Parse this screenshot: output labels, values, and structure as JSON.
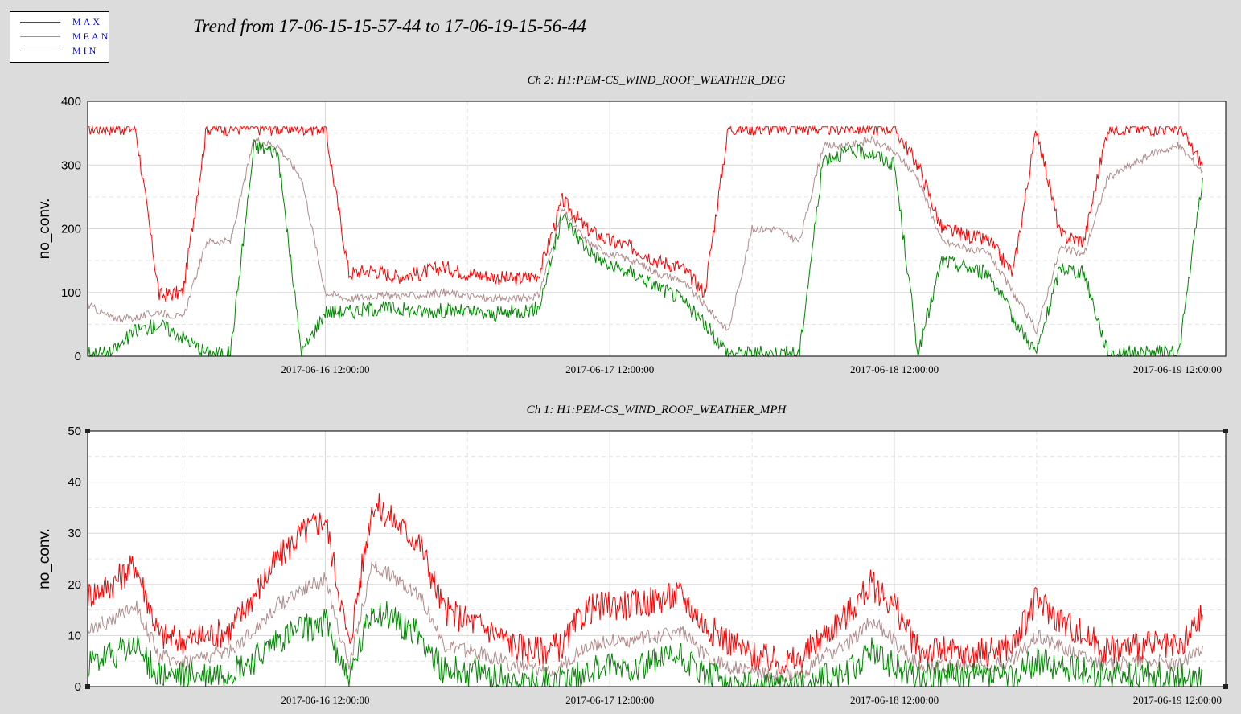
{
  "title": "Trend from 17-06-15-15-57-44 to 17-06-19-15-56-44",
  "legend": [
    {
      "name": "MAX",
      "color": "#ff0000"
    },
    {
      "name": "MEAN",
      "color": "#b08c8c"
    },
    {
      "name": "MIN",
      "color": "#008800"
    }
  ],
  "chart_data": [
    {
      "type": "line",
      "title": "Ch 2: H1:PEM-CS_WIND_ROOF_WEATHER_DEG",
      "xlabel": "",
      "ylabel": "no_conv.",
      "ylim": [
        0,
        400
      ],
      "yticks": [
        0,
        100,
        200,
        300,
        400
      ],
      "xrange": [
        "2017-06-15 15:57:44",
        "2017-06-19 15:56:44"
      ],
      "xticks": [
        "2017-06-16 12:00:00",
        "2017-06-17 12:00:00",
        "2017-06-18 12:00:00",
        "2017-06-19 12:00:00"
      ],
      "grid": true,
      "series_names": [
        "MAX",
        "MEAN",
        "MIN"
      ],
      "x": [
        "2017-06-15 16:00",
        "2017-06-15 18:00",
        "2017-06-15 20:00",
        "2017-06-15 22:00",
        "2017-06-16 00:00",
        "2017-06-16 02:00",
        "2017-06-16 04:00",
        "2017-06-16 06:00",
        "2017-06-16 08:00",
        "2017-06-16 10:00",
        "2017-06-16 12:00",
        "2017-06-16 14:00",
        "2017-06-16 16:00",
        "2017-06-16 18:00",
        "2017-06-16 20:00",
        "2017-06-16 22:00",
        "2017-06-17 00:00",
        "2017-06-17 02:00",
        "2017-06-17 04:00",
        "2017-06-17 06:00",
        "2017-06-17 08:00",
        "2017-06-17 10:00",
        "2017-06-17 12:00",
        "2017-06-17 14:00",
        "2017-06-17 16:00",
        "2017-06-17 18:00",
        "2017-06-17 20:00",
        "2017-06-17 22:00",
        "2017-06-18 00:00",
        "2017-06-18 02:00",
        "2017-06-18 04:00",
        "2017-06-18 06:00",
        "2017-06-18 08:00",
        "2017-06-18 10:00",
        "2017-06-18 12:00",
        "2017-06-18 14:00",
        "2017-06-18 16:00",
        "2017-06-18 18:00",
        "2017-06-18 20:00",
        "2017-06-18 22:00",
        "2017-06-19 00:00",
        "2017-06-19 02:00",
        "2017-06-19 04:00",
        "2017-06-19 06:00",
        "2017-06-19 08:00",
        "2017-06-19 10:00",
        "2017-06-19 12:00",
        "2017-06-19 14:00"
      ],
      "series": [
        {
          "name": "MAX",
          "color": "#ff0000",
          "values": [
            358,
            358,
            358,
            95,
            100,
            358,
            358,
            358,
            358,
            358,
            358,
            130,
            135,
            125,
            130,
            140,
            130,
            125,
            120,
            128,
            245,
            200,
            180,
            170,
            150,
            140,
            100,
            358,
            358,
            358,
            358,
            358,
            358,
            358,
            358,
            300,
            200,
            190,
            180,
            130,
            358,
            190,
            180,
            358,
            358,
            358,
            358,
            300
          ]
        },
        {
          "name": "MEAN",
          "color": "#b08c8c",
          "values": [
            80,
            60,
            60,
            70,
            60,
            180,
            180,
            340,
            330,
            280,
            100,
            90,
            95,
            95,
            95,
            100,
            95,
            90,
            90,
            95,
            230,
            180,
            160,
            150,
            130,
            120,
            80,
            40,
            200,
            200,
            180,
            330,
            330,
            340,
            320,
            280,
            180,
            170,
            160,
            100,
            40,
            170,
            160,
            280,
            300,
            320,
            330,
            290
          ]
        },
        {
          "name": "MIN",
          "color": "#008800",
          "values": [
            5,
            5,
            40,
            50,
            30,
            5,
            5,
            330,
            320,
            5,
            70,
            70,
            75,
            75,
            70,
            72,
            70,
            65,
            70,
            75,
            220,
            170,
            140,
            130,
            110,
            90,
            50,
            5,
            5,
            5,
            5,
            310,
            320,
            320,
            300,
            5,
            150,
            140,
            130,
            60,
            5,
            140,
            130,
            5,
            5,
            5,
            5,
            280
          ]
        }
      ]
    },
    {
      "type": "line",
      "title": "Ch 1: H1:PEM-CS_WIND_ROOF_WEATHER_MPH",
      "xlabel": "",
      "ylabel": "no_conv.",
      "ylim": [
        0,
        50
      ],
      "yticks": [
        0,
        10,
        20,
        30,
        40,
        50
      ],
      "xrange": [
        "2017-06-15 15:57:44",
        "2017-06-19 15:56:44"
      ],
      "xticks": [
        "2017-06-16 12:00:00",
        "2017-06-17 12:00:00",
        "2017-06-18 12:00:00",
        "2017-06-19 12:00:00"
      ],
      "grid": true,
      "series_names": [
        "MAX",
        "MEAN",
        "MIN"
      ],
      "x": [
        "2017-06-15 16:00",
        "2017-06-15 18:00",
        "2017-06-15 20:00",
        "2017-06-15 22:00",
        "2017-06-16 00:00",
        "2017-06-16 02:00",
        "2017-06-16 04:00",
        "2017-06-16 06:00",
        "2017-06-16 08:00",
        "2017-06-16 10:00",
        "2017-06-16 12:00",
        "2017-06-16 14:00",
        "2017-06-16 16:00",
        "2017-06-16 18:00",
        "2017-06-16 20:00",
        "2017-06-16 22:00",
        "2017-06-17 00:00",
        "2017-06-17 02:00",
        "2017-06-17 04:00",
        "2017-06-17 06:00",
        "2017-06-17 08:00",
        "2017-06-17 10:00",
        "2017-06-17 12:00",
        "2017-06-17 14:00",
        "2017-06-17 16:00",
        "2017-06-17 18:00",
        "2017-06-17 20:00",
        "2017-06-17 22:00",
        "2017-06-18 00:00",
        "2017-06-18 02:00",
        "2017-06-18 04:00",
        "2017-06-18 06:00",
        "2017-06-18 08:00",
        "2017-06-18 10:00",
        "2017-06-18 12:00",
        "2017-06-18 14:00",
        "2017-06-18 16:00",
        "2017-06-18 18:00",
        "2017-06-18 20:00",
        "2017-06-18 22:00",
        "2017-06-19 00:00",
        "2017-06-19 02:00",
        "2017-06-19 04:00",
        "2017-06-19 06:00",
        "2017-06-19 08:00",
        "2017-06-19 10:00",
        "2017-06-19 12:00",
        "2017-06-19 14:00"
      ],
      "series": [
        {
          "name": "MAX",
          "color": "#ff0000",
          "values": [
            18,
            20,
            24,
            10,
            9,
            10,
            11,
            18,
            25,
            30,
            33,
            8,
            36,
            32,
            28,
            15,
            13,
            11,
            8,
            7,
            8,
            15,
            16,
            16,
            17,
            18,
            12,
            9,
            6,
            5,
            5,
            10,
            14,
            20,
            16,
            7,
            7,
            6,
            7,
            8,
            17,
            13,
            10,
            7,
            8,
            8,
            7,
            14
          ]
        },
        {
          "name": "MEAN",
          "color": "#b08c8c",
          "values": [
            11,
            13,
            16,
            6,
            5,
            6,
            7,
            11,
            16,
            19,
            21,
            4,
            24,
            21,
            18,
            8,
            7,
            6,
            4,
            3,
            4,
            8,
            9,
            9,
            10,
            11,
            6,
            4,
            3,
            2,
            2,
            6,
            8,
            13,
            9,
            4,
            4,
            4,
            4,
            5,
            10,
            8,
            6,
            4,
            5,
            5,
            4,
            8
          ]
        },
        {
          "name": "MIN",
          "color": "#008800",
          "values": [
            4,
            6,
            8,
            2,
            2,
            2,
            3,
            5,
            9,
            11,
            13,
            1,
            15,
            13,
            10,
            3,
            3,
            2,
            1,
            1,
            1,
            3,
            4,
            4,
            5,
            6,
            2,
            1,
            0,
            0,
            0,
            2,
            3,
            7,
            4,
            2,
            2,
            2,
            2,
            2,
            5,
            4,
            3,
            2,
            2,
            2,
            2,
            3
          ]
        }
      ]
    }
  ]
}
